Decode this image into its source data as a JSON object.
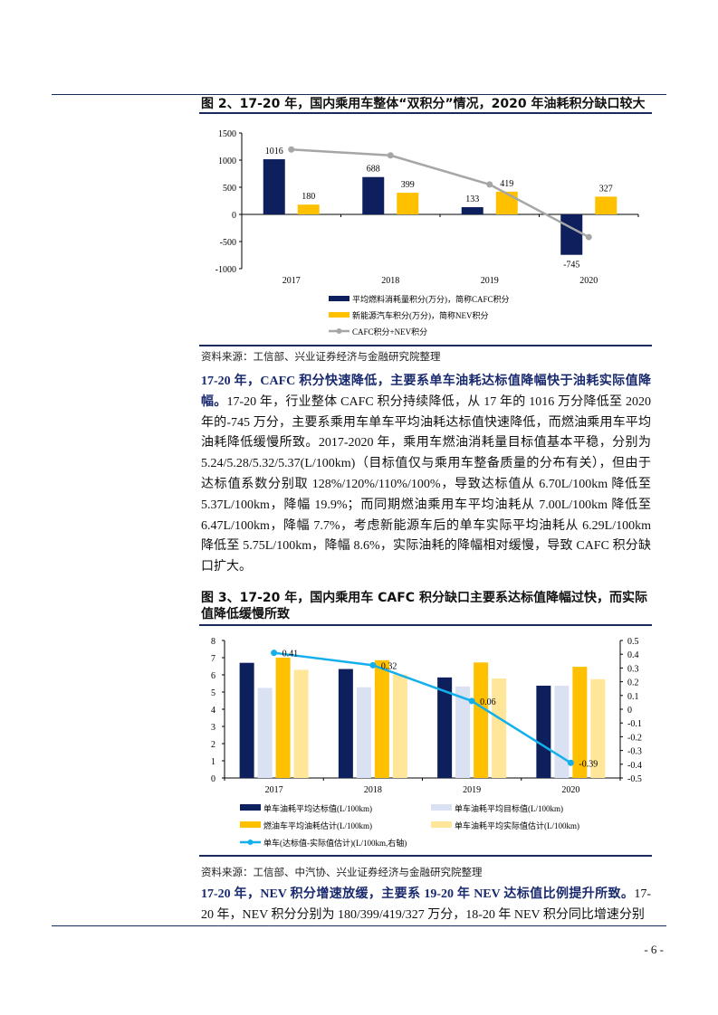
{
  "fig2": {
    "title": "图 2、17-20 年，国内乘用车整体“双积分”情况，2020 年油耗积分缺口较大",
    "source": "资料来源：工信部、兴业证券经济与金融研究院整理"
  },
  "para1": {
    "bold": "17-20 年，CAFC 积分快速降低，主要系单车油耗达标值降幅快于油耗实际值降幅。",
    "text": "17-20 年，行业整体 CAFC 积分持续降低，从 17 年的 1016 万分降低至 2020 年的-745 万分，主要系乘用车单车平均油耗达标值快速降低，而燃油乘用车平均油耗降低缓慢所致。2017-2020 年，乘用车燃油消耗量目标值基本平稳，分别为 5.24/5.28/5.32/5.37(L/100km)（目标值仅与乘用车整备质量的分布有关），但由于达标值系数分别取 128%/120%/110%/100%，导致达标值从 6.70L/100km 降低至 5.37L/100km，降幅 19.9%；而同期燃油乘用车平均油耗从 7.00L/100km 降低至 6.47L/100km，降幅 7.7%，考虑新能源车后的单车实际平均油耗从 6.29L/100km 降低至 5.75L/100km，降幅 8.6%，实际油耗的降幅相对缓慢，导致 CAFC 积分缺口扩大。"
  },
  "fig3": {
    "title": "图 3、17-20 年，国内乘用车 CAFC 积分缺口主要系达标值降幅过快，而实际值降低缓慢所致",
    "source": "资料来源：工信部、中汽协、兴业证券经济与金融研究院整理"
  },
  "para2": {
    "bold": "17-20 年，NEV 积分增速放缓，主要系 19-20 年 NEV 达标值比例提升所致。",
    "text": "17-20 年，NEV 积分分别为 180/399/419/327 万分，18-20 年 NEV 积分同比增速分别"
  },
  "footer": {
    "page": "- 6 -"
  },
  "chart_data": [
    {
      "type": "bar",
      "categories": [
        "2017",
        "2018",
        "2019",
        "2020"
      ],
      "ylim": [
        -1000,
        1500
      ],
      "yticks": [
        "1500",
        "1000",
        "500",
        "0",
        "-500",
        "-1000"
      ],
      "series": [
        {
          "name": "平均燃料消耗量积分(万分)，简称CAFC积分",
          "kind": "bar",
          "color": "#0d1f5c",
          "values": [
            1016,
            688,
            133,
            -745
          ],
          "labels": [
            "1016",
            "688",
            "133",
            "-745"
          ]
        },
        {
          "name": "新能源汽车积分(万分)，简称NEV积分",
          "kind": "bar",
          "color": "#ffc000",
          "values": [
            180,
            399,
            419,
            327
          ],
          "labels": [
            "180",
            "399",
            "419",
            "327"
          ]
        },
        {
          "name": "CAFC积分+NEV积分",
          "kind": "line",
          "color": "#a6a6a6",
          "values": [
            1196,
            1087,
            552,
            -418
          ]
        }
      ],
      "legend": "bottom"
    },
    {
      "type": "bar",
      "categories": [
        "2017",
        "2018",
        "2019",
        "2020"
      ],
      "ylim": [
        0,
        8
      ],
      "y2lim": [
        -0.5,
        0.5
      ],
      "yticks": [
        "0",
        "1",
        "2",
        "3",
        "4",
        "5",
        "6",
        "7",
        "8"
      ],
      "y2ticks": [
        "0.5",
        "0.4",
        "0.3",
        "0.2",
        "0.1",
        "0",
        "-0.1",
        "-0.2",
        "-0.3",
        "-0.4",
        "-0.5"
      ],
      "series": [
        {
          "name": "单车油耗平均达标值(L/100km)",
          "kind": "bar",
          "color": "#0d1f5c",
          "values": [
            6.7,
            6.34,
            5.85,
            5.37
          ]
        },
        {
          "name": "单车油耗平均目标值(L/100km)",
          "kind": "bar",
          "color": "#d9e1f2",
          "values": [
            5.24,
            5.28,
            5.32,
            5.37
          ]
        },
        {
          "name": "燃油车平均油耗估计(L/100km)",
          "kind": "bar",
          "color": "#ffc000",
          "values": [
            7.0,
            6.85,
            6.72,
            6.47
          ]
        },
        {
          "name": "单车油耗平均实际值估计(L/100km)",
          "kind": "bar",
          "color": "#ffe699",
          "values": [
            6.29,
            6.02,
            5.79,
            5.75
          ]
        },
        {
          "name": "单车(达标值-实际值估计)(L/100km,右轴)",
          "kind": "line",
          "axis": "right",
          "color": "#13b0ec",
          "values": [
            0.41,
            0.32,
            0.06,
            -0.39
          ],
          "labels": [
            "0.41",
            "0.32",
            "0.06",
            "-0.39"
          ]
        }
      ],
      "legend": "bottom"
    }
  ]
}
